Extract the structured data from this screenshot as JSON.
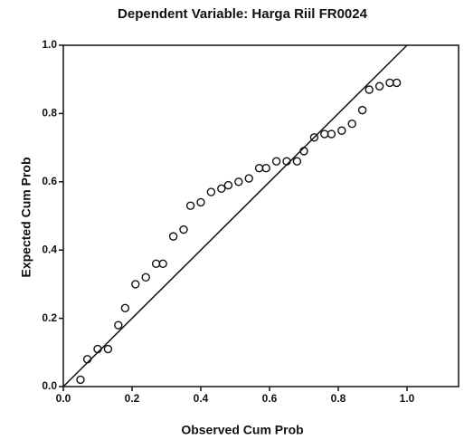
{
  "chart_data": {
    "type": "scatter",
    "title": "Dependent Variable: Harga Riil FR0024",
    "x_label": "Observed Cum Prob",
    "y_label": "Expected Cum Prob",
    "x": [
      0.05,
      0.07,
      0.1,
      0.13,
      0.16,
      0.18,
      0.21,
      0.24,
      0.27,
      0.29,
      0.32,
      0.35,
      0.37,
      0.4,
      0.43,
      0.46,
      0.48,
      0.51,
      0.54,
      0.57,
      0.59,
      0.62,
      0.65,
      0.68,
      0.7,
      0.73,
      0.76,
      0.78,
      0.81,
      0.84,
      0.87,
      0.89,
      0.92,
      0.95,
      0.97
    ],
    "values": [
      0.02,
      0.08,
      0.11,
      0.11,
      0.18,
      0.23,
      0.3,
      0.32,
      0.36,
      0.36,
      0.44,
      0.46,
      0.53,
      0.54,
      0.57,
      0.58,
      0.59,
      0.6,
      0.61,
      0.64,
      0.64,
      0.66,
      0.66,
      0.66,
      0.69,
      0.73,
      0.74,
      0.74,
      0.75,
      0.77,
      0.81,
      0.87,
      0.88,
      0.89,
      0.89
    ],
    "color": "#111111",
    "diagonal": true,
    "xlim": [
      0,
      1.15
    ],
    "ylim": [
      0,
      1
    ],
    "xticks": [
      {
        "value": 0,
        "label": "0.0"
      },
      {
        "value": 0.2,
        "label": "0.2"
      },
      {
        "value": 0.4,
        "label": "0.4"
      },
      {
        "value": 0.6,
        "label": "0.6"
      },
      {
        "value": 0.8,
        "label": "0.8"
      },
      {
        "value": 1,
        "label": "1.0"
      }
    ],
    "yticks": [
      {
        "value": 0,
        "label": "0.0"
      },
      {
        "value": 0.2,
        "label": "0.2"
      },
      {
        "value": 0.4,
        "label": "0.4"
      },
      {
        "value": 0.6,
        "label": "0.6"
      },
      {
        "value": 0.8,
        "label": "0.8"
      },
      {
        "value": 1,
        "label": "1.0"
      }
    ]
  }
}
